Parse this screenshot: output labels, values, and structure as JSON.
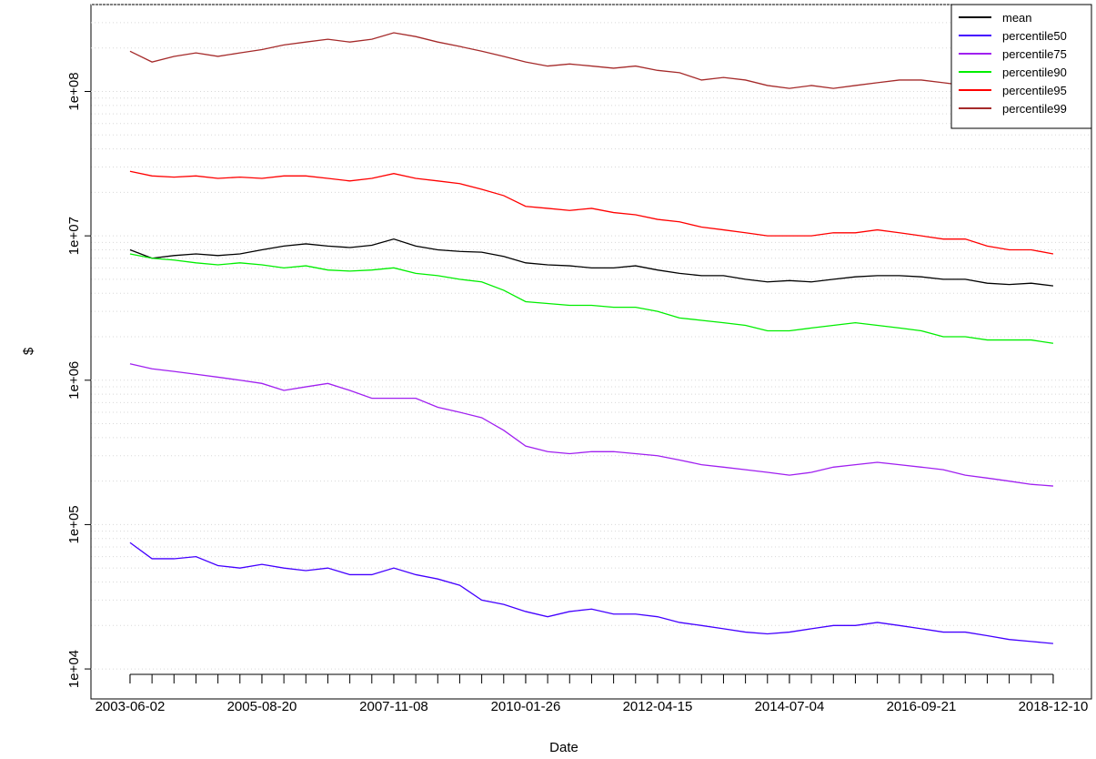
{
  "chart_data": {
    "type": "line",
    "xlabel": "Date",
    "ylabel": "$",
    "log_y": true,
    "grid": true,
    "legend": "top-right",
    "x": [
      "2003-06-02",
      "2003-10-15",
      "2004-02-27",
      "2004-07-11",
      "2004-11-23",
      "2005-04-07",
      "2005-08-20",
      "2006-01-02",
      "2006-05-17",
      "2006-09-29",
      "2007-02-11",
      "2007-06-26",
      "2007-11-08",
      "2008-03-22",
      "2008-08-04",
      "2008-12-17",
      "2009-05-01",
      "2009-09-13",
      "2010-01-26",
      "2010-06-10",
      "2010-10-23",
      "2011-03-07",
      "2011-07-20",
      "2011-12-02",
      "2012-04-15",
      "2012-08-28",
      "2013-01-10",
      "2013-05-25",
      "2013-10-07",
      "2014-02-19",
      "2014-07-04",
      "2014-11-16",
      "2015-03-31",
      "2015-08-13",
      "2015-12-26",
      "2016-05-09",
      "2016-09-21",
      "2017-02-03",
      "2017-06-18",
      "2017-10-31",
      "2018-03-15",
      "2018-07-28",
      "2018-12-10"
    ],
    "xlim": [
      "2002-10-05",
      "2019-08-02"
    ],
    "xticks": [
      "2003-06-02",
      "2005-08-20",
      "2007-11-08",
      "2010-01-26",
      "2012-04-15",
      "2014-07-04",
      "2016-09-21",
      "2018-12-10"
    ],
    "ylim": [
      6200,
      400000000
    ],
    "yticks": [
      {
        "value": 10000,
        "label": "1e+04"
      },
      {
        "value": 100000,
        "label": "1e+05"
      },
      {
        "value": 1000000,
        "label": "1e+06"
      },
      {
        "value": 10000000,
        "label": "1e+07"
      },
      {
        "value": 100000000,
        "label": "1e+08"
      }
    ],
    "series": [
      {
        "name": "mean",
        "color": "#000000",
        "values": [
          8000000.0,
          7000000.0,
          7300000.0,
          7500000.0,
          7300000.0,
          7500000.0,
          8000000.0,
          8500000.0,
          8800000.0,
          8500000.0,
          8300000.0,
          8600000.0,
          9500000.0,
          8500000.0,
          8000000.0,
          7800000.0,
          7700000.0,
          7200000.0,
          6500000.0,
          6300000.0,
          6200000.0,
          6000000.0,
          6000000.0,
          6200000.0,
          5800000.0,
          5500000.0,
          5300000.0,
          5300000.0,
          5000000.0,
          4800000.0,
          4900000.0,
          4800000.0,
          5000000.0,
          5200000.0,
          5300000.0,
          5300000.0,
          5200000.0,
          5000000.0,
          5000000.0,
          4700000.0,
          4600000.0,
          4700000.0,
          4500000.0
        ]
      },
      {
        "name": "percentile50",
        "color": "#4400ff",
        "values": [
          75000.0,
          58000.0,
          58000.0,
          60000.0,
          52000.0,
          50000.0,
          53000.0,
          50000.0,
          48000.0,
          50000.0,
          45000.0,
          45000.0,
          50000.0,
          45000.0,
          42000.0,
          38000.0,
          30000.0,
          28000.0,
          25000.0,
          23000.0,
          25000.0,
          26000.0,
          24000.0,
          24000.0,
          23000.0,
          21000.0,
          20000.0,
          19000.0,
          18000.0,
          17500.0,
          18000.0,
          19000.0,
          20000.0,
          20000.0,
          21000.0,
          20000.0,
          19000.0,
          18000.0,
          18000.0,
          17000.0,
          16000.0,
          15500.0,
          15000.0
        ]
      },
      {
        "name": "percentile75",
        "color": "#a020f0",
        "values": [
          1300000.0,
          1200000.0,
          1150000.0,
          1100000.0,
          1050000.0,
          1000000.0,
          950000.0,
          850000.0,
          900000.0,
          950000.0,
          850000.0,
          750000.0,
          750000.0,
          750000.0,
          650000.0,
          600000.0,
          550000.0,
          450000.0,
          350000.0,
          320000.0,
          310000.0,
          320000.0,
          320000.0,
          310000.0,
          300000.0,
          280000.0,
          260000.0,
          250000.0,
          240000.0,
          230000.0,
          220000.0,
          230000.0,
          250000.0,
          260000.0,
          270000.0,
          260000.0,
          250000.0,
          240000.0,
          220000.0,
          210000.0,
          200000.0,
          190000.0,
          185000.0
        ]
      },
      {
        "name": "percentile90",
        "color": "#00ee00",
        "values": [
          7500000.0,
          7000000.0,
          6800000.0,
          6500000.0,
          6300000.0,
          6500000.0,
          6300000.0,
          6000000.0,
          6200000.0,
          5800000.0,
          5700000.0,
          5800000.0,
          6000000.0,
          5500000.0,
          5300000.0,
          5000000.0,
          4800000.0,
          4200000.0,
          3500000.0,
          3400000.0,
          3300000.0,
          3300000.0,
          3200000.0,
          3200000.0,
          3000000.0,
          2700000.0,
          2600000.0,
          2500000.0,
          2400000.0,
          2200000.0,
          2200000.0,
          2300000.0,
          2400000.0,
          2500000.0,
          2400000.0,
          2300000.0,
          2200000.0,
          2000000.0,
          2000000.0,
          1900000.0,
          1900000.0,
          1900000.0,
          1800000.0
        ]
      },
      {
        "name": "percentile95",
        "color": "#ff0000",
        "values": [
          28000000.0,
          26000000.0,
          25500000.0,
          26000000.0,
          25000000.0,
          25500000.0,
          25000000.0,
          26000000.0,
          26000000.0,
          25000000.0,
          24000000.0,
          25000000.0,
          27000000.0,
          25000000.0,
          24000000.0,
          23000000.0,
          21000000.0,
          19000000.0,
          16000000.0,
          15500000.0,
          15000000.0,
          15500000.0,
          14500000.0,
          14000000.0,
          13000000.0,
          12500000.0,
          11500000.0,
          11000000.0,
          10500000.0,
          10000000.0,
          10000000.0,
          10000000.0,
          10500000.0,
          10500000.0,
          11000000.0,
          10500000.0,
          10000000.0,
          9500000.0,
          9500000.0,
          8500000.0,
          8000000.0,
          8000000.0,
          7500000.0
        ]
      },
      {
        "name": "percentile99",
        "color": "#a52a2a",
        "values": [
          190000000.0,
          160000000.0,
          175000000.0,
          185000000.0,
          175000000.0,
          185000000.0,
          195000000.0,
          210000000.0,
          220000000.0,
          230000000.0,
          220000000.0,
          230000000.0,
          255000000.0,
          240000000.0,
          220000000.0,
          205000000.0,
          190000000.0,
          175000000.0,
          160000000.0,
          150000000.0,
          155000000.0,
          150000000.0,
          145000000.0,
          150000000.0,
          140000000.0,
          135000000.0,
          120000000.0,
          125000000.0,
          120000000.0,
          110000000.0,
          105000000.0,
          110000000.0,
          105000000.0,
          110000000.0,
          115000000.0,
          120000000.0,
          120000000.0,
          115000000.0,
          110000000.0,
          105000000.0,
          100000000.0,
          105000000.0,
          100000000.0
        ]
      }
    ]
  }
}
